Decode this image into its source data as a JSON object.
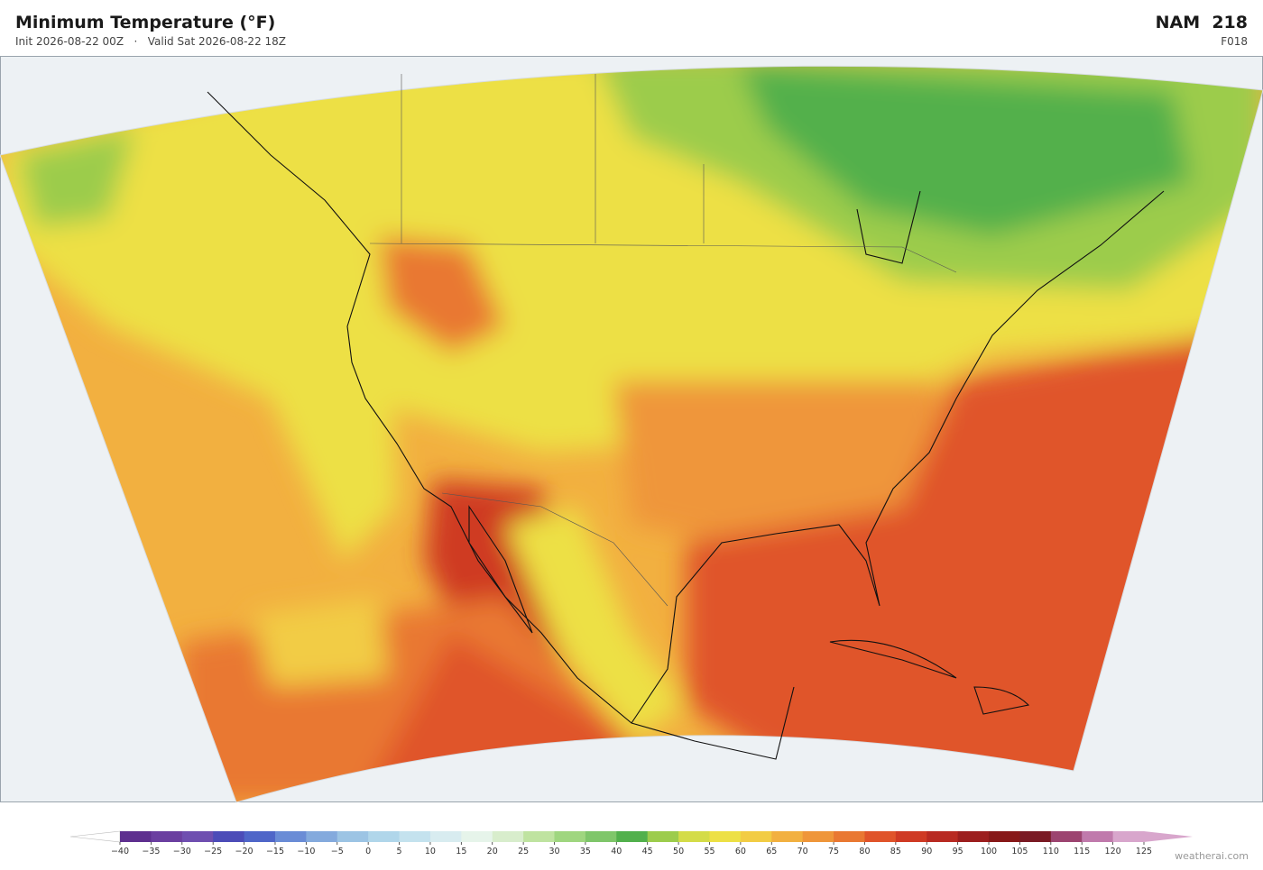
{
  "header": {
    "title": "Minimum Temperature  (°F)",
    "subtitle": "Init 2026-08-22 00Z   ·   Valid Sat 2026-08-22 18Z",
    "model": "NAM  218",
    "forecast_hour": "F018"
  },
  "colorbar": {
    "ticks": [
      "−40",
      "−35",
      "−30",
      "−25",
      "−20",
      "−15",
      "−10",
      "−5",
      "0",
      "5",
      "10",
      "15",
      "20",
      "25",
      "30",
      "35",
      "40",
      "45",
      "50",
      "55",
      "60",
      "65",
      "70",
      "75",
      "80",
      "85",
      "90",
      "95",
      "100",
      "105",
      "110",
      "115",
      "120",
      "125"
    ],
    "colors": [
      "#5e2f8f",
      "#6b3fa0",
      "#6f4fb0",
      "#4c4cb8",
      "#4f66c8",
      "#6a8cd6",
      "#84aadd",
      "#9cc4e4",
      "#b0d6ea",
      "#c4e2ee",
      "#d8ecf0",
      "#e6f4ea",
      "#d8edcc",
      "#bfe3a0",
      "#9fd67f",
      "#7fc66a",
      "#52b04c",
      "#9ccc4c",
      "#d4dc48",
      "#ede045",
      "#f2cc44",
      "#f2b040",
      "#ef963a",
      "#e97832",
      "#e0542a",
      "#cf3a24",
      "#b82a22",
      "#9c1e1e",
      "#871818",
      "#7a1a24",
      "#9c4470",
      "#c07aac",
      "#d8a6cc"
    ],
    "under_color": "#ffffff",
    "over_color": "#d8a6cc"
  },
  "watermark": "weatherai.com"
}
